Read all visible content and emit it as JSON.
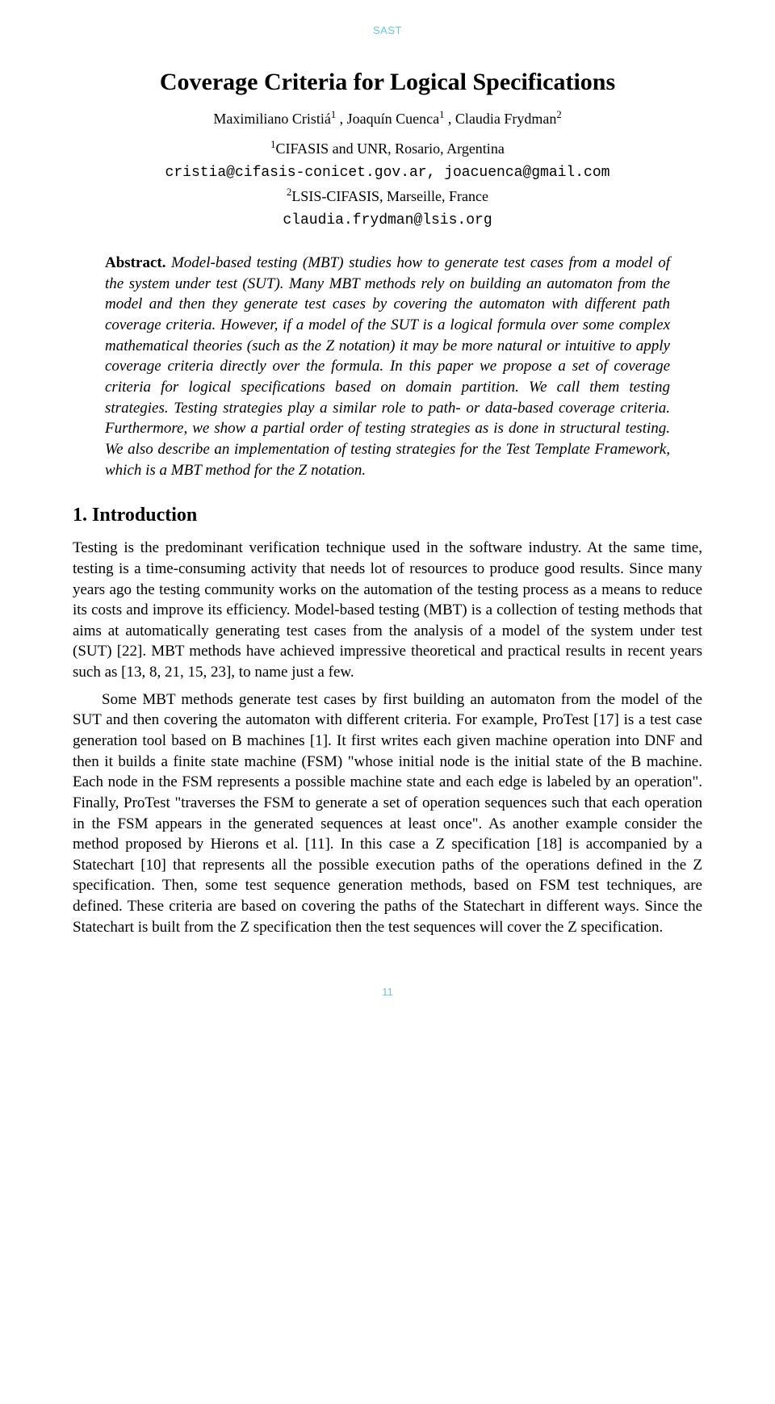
{
  "header_tag": "SAST",
  "title": "Coverage Criteria for Logical Specifications",
  "authors_html": "Maximiliano Cristiá",
  "author1_sup": "1",
  "author_sep1": " , Joaquín Cuenca",
  "author2_sup": "1",
  "author_sep2": " , Claudia Frydman",
  "author3_sup": "2",
  "affil1_sup": "1",
  "affil1_text": "CIFASIS and UNR, Rosario, Argentina",
  "affil1_email": "cristia@cifasis-conicet.gov.ar, joacuenca@gmail.com",
  "affil2_sup": "2",
  "affil2_text": "LSIS-CIFASIS, Marseille, France",
  "affil2_email": "claudia.frydman@lsis.org",
  "abstract_label": "Abstract.",
  "abstract_text": " Model-based testing (MBT) studies how to generate test cases from a model of the system under test (SUT). Many MBT methods rely on building an automaton from the model and then they generate test cases by covering the automaton with different path coverage criteria. However, if a model of the SUT is a logical formula over some complex mathematical theories (such as the Z notation) it may be more natural or intuitive to apply coverage criteria directly over the formula. In this paper we propose a set of coverage criteria for logical specifications based on domain partition. We call them testing strategies. Testing strategies play a similar role to path- or data-based coverage criteria. Furthermore, we show a partial order of testing strategies as is done in structural testing. We also describe an implementation of testing strategies for the Test Template Framework, which is a MBT method for the Z notation.",
  "section1_heading": "1. Introduction",
  "para1": "Testing is the predominant verification technique used in the software industry. At the same time, testing is a time-consuming activity that needs lot of resources to produce good results. Since many years ago the testing community works on the automation of the testing process as a means to reduce its costs and improve its efficiency. Model-based testing (MBT) is a collection of testing methods that aims at automatically generating test cases from the analysis of a model of the system under test (SUT) [22]. MBT methods have achieved impressive theoretical and practical results in recent years such as [13, 8, 21, 15, 23], to name just a few.",
  "para2": "Some MBT methods generate test cases by first building an automaton from the model of the SUT and then covering the automaton with different criteria. For example, ProTest [17] is a test case generation tool based on B machines [1]. It first writes each given machine operation into DNF and then it builds a finite state machine (FSM) \"whose initial node is the initial state of the B machine. Each node in the FSM represents a possible machine state and each edge is labeled by an operation\". Finally, ProTest \"traverses the FSM to generate a set of operation sequences such that each operation in the FSM appears in the generated sequences at least once\". As another example consider the method proposed by Hierons et al. [11]. In this case a Z specification [18] is accompanied by a Statechart [10] that represents all the possible execution paths of the operations defined in the Z specification. Then, some test sequence generation methods, based on FSM test techniques, are defined. These criteria are based on covering the paths of the Statechart in different ways. Since the Statechart is built from the Z specification then the test sequences will cover the Z specification.",
  "page_number": "11"
}
